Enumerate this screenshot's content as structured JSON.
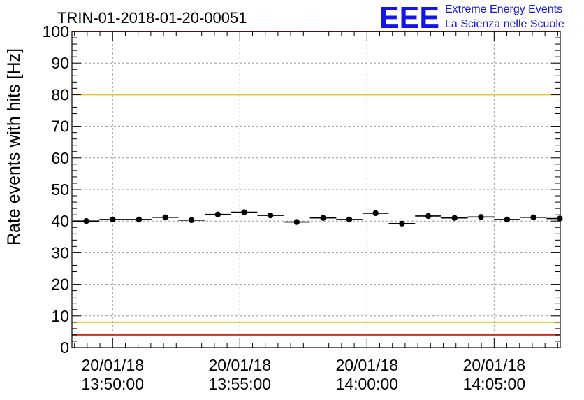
{
  "chart_data": {
    "type": "scatter",
    "title": "TRIN-01-2018-01-20-00051",
    "ylabel": "Rate events with hits [Hz]",
    "xlabel": "",
    "ylim": [
      0,
      100
    ],
    "y_ticks": [
      "0",
      "10",
      "20",
      "30",
      "40",
      "50",
      "60",
      "70",
      "80",
      "90",
      "100"
    ],
    "x_range_minutes": [
      -3.2,
      35.2
    ],
    "x_tick_labels": [
      {
        "minute": 0,
        "date": "20/01/18",
        "time": "13:50:00"
      },
      {
        "minute": 10,
        "date": "20/01/18",
        "time": "13:55:00"
      },
      {
        "minute": 20,
        "date": "20/01/18",
        "time": "14:00:00"
      },
      {
        "minute": 30,
        "date": "20/01/18",
        "time": "14:05:00"
      }
    ],
    "bin_width_minutes": 2.07,
    "series": [
      {
        "name": "rate",
        "x_minutes": [
          -2.07,
          0.0,
          2.07,
          4.14,
          6.2,
          8.27,
          10.34,
          12.41,
          14.48,
          16.55,
          18.61,
          20.68,
          22.75,
          24.82,
          26.89,
          28.96,
          31.02,
          33.09,
          35.16
        ],
        "values": [
          40.0,
          40.5,
          40.5,
          41.2,
          40.3,
          42.1,
          42.8,
          41.8,
          39.7,
          41.0,
          40.5,
          42.5,
          39.2,
          41.6,
          41.0,
          41.3,
          40.5,
          41.2,
          40.8
        ]
      }
    ],
    "reference_lines": [
      {
        "name": "upper-red-line",
        "value": 100,
        "color": "#e8231b"
      },
      {
        "name": "upper-yellow-line",
        "value": 80,
        "color": "#f0c419"
      },
      {
        "name": "lower-yellow-line",
        "value": 8,
        "color": "#f0c419"
      },
      {
        "name": "lower-red-line",
        "value": 4,
        "color": "#e8231b"
      }
    ],
    "grid": true
  },
  "logo": {
    "mark": "EEE",
    "line1": "Extreme Energy Events",
    "line2": "La Scienza nelle Scuole",
    "color": "#1414e6"
  }
}
